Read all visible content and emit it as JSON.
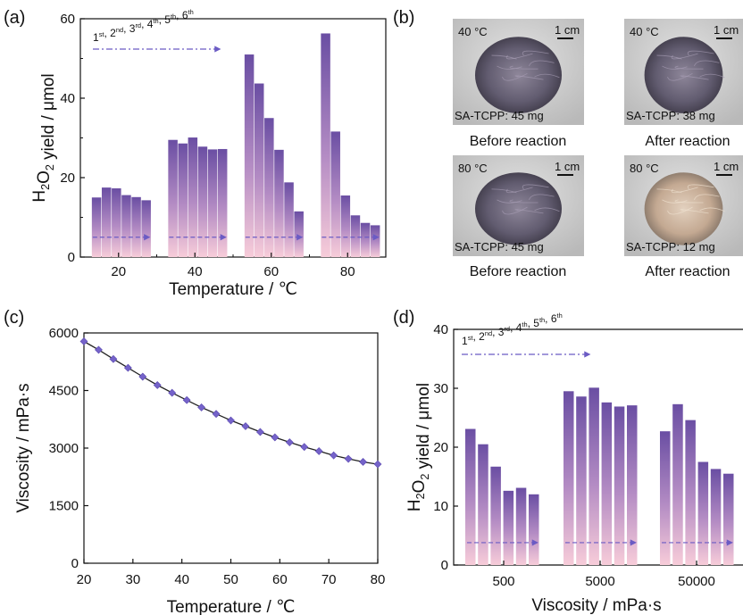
{
  "panels": {
    "a": {
      "label": "(a)"
    },
    "b": {
      "label": "(b)"
    },
    "c": {
      "label": "(c)"
    },
    "d": {
      "label": "(d)"
    }
  },
  "colors": {
    "bar_top": "#6a4ea3",
    "bar_bottom": "#f5c8d8",
    "arrow": "#6b5bc4",
    "marker": "#7563c9",
    "curve": "#222222"
  },
  "chart_data": [
    {
      "id": "a",
      "type": "bar",
      "xlabel": "Temperature / ℃",
      "ylabel_parts": [
        "H",
        "2",
        "O",
        "2",
        " yield / μmol"
      ],
      "xlim": [
        10,
        90
      ],
      "ylim": [
        0,
        60
      ],
      "xticks": [
        "20",
        "40",
        "60",
        "80"
      ],
      "yticks": [
        "0",
        "20",
        "40",
        "60"
      ],
      "grid": false,
      "legend": {
        "text_parts": [
          [
            "1",
            "st"
          ],
          [
            "2",
            "nd"
          ],
          [
            "3",
            "rd"
          ],
          [
            "4",
            "th"
          ],
          [
            "5",
            "th"
          ],
          [
            "6",
            "th"
          ]
        ],
        "style": "dash-dot arrow"
      },
      "groups": [
        {
          "x": [
            14,
            16.6,
            19.2,
            21.8,
            24.4,
            27
          ],
          "values": [
            15.0,
            17.5,
            17.3,
            15.6,
            15.1,
            14.3
          ]
        },
        {
          "x": [
            34,
            36.6,
            39.2,
            41.8,
            44.4,
            47
          ],
          "values": [
            29.5,
            28.6,
            30.1,
            27.8,
            27.1,
            27.2
          ]
        },
        {
          "x": [
            54,
            56.6,
            59.2,
            61.8,
            64.4,
            67
          ],
          "values": [
            51.0,
            43.7,
            35.0,
            27.0,
            18.8,
            11.5
          ]
        },
        {
          "x": [
            74,
            76.6,
            79.2,
            81.8,
            84.4,
            87
          ],
          "values": [
            56.3,
            31.6,
            15.5,
            10.5,
            8.6,
            8.0
          ]
        }
      ],
      "arrow_level": 5
    },
    {
      "id": "c",
      "type": "line",
      "xlabel": "Temperature / ℃",
      "ylabel": "Viscosity / mPa·s",
      "xlim": [
        20,
        80
      ],
      "ylim": [
        0,
        6000
      ],
      "xticks": [
        "20",
        "30",
        "40",
        "50",
        "60",
        "70",
        "80"
      ],
      "yticks": [
        "0",
        "1500",
        "3000",
        "4500",
        "6000"
      ],
      "grid": false,
      "x": [
        20,
        23,
        26,
        29,
        32,
        35,
        38,
        41,
        44,
        47,
        50,
        53,
        56,
        59,
        62,
        65,
        68,
        71,
        74,
        77,
        80
      ],
      "y": [
        5780,
        5560,
        5320,
        5090,
        4860,
        4640,
        4440,
        4250,
        4060,
        3890,
        3720,
        3570,
        3420,
        3280,
        3150,
        3030,
        2920,
        2810,
        2720,
        2640,
        2580
      ]
    },
    {
      "id": "d",
      "type": "bar",
      "xlabel": "Viscosity / mPa·s",
      "ylabel_parts": [
        "H",
        "2",
        "O",
        "2",
        " yield / μmol"
      ],
      "ylim": [
        0,
        40
      ],
      "xticks": [
        "500",
        "5000",
        "50000"
      ],
      "yticks": [
        "0",
        "10",
        "20",
        "30",
        "40"
      ],
      "grid": false,
      "legend": {
        "text_parts": [
          [
            "1",
            "st"
          ],
          [
            "2",
            "nd"
          ],
          [
            "3",
            "rd"
          ],
          [
            "4",
            "th"
          ],
          [
            "5",
            "th"
          ],
          [
            "6",
            "th"
          ]
        ],
        "style": "dash-dot arrow"
      },
      "groups": [
        {
          "category": "500",
          "values": [
            23.1,
            20.5,
            16.7,
            12.6,
            13.1,
            12.0
          ]
        },
        {
          "category": "5000",
          "values": [
            29.5,
            28.6,
            30.1,
            27.6,
            26.9,
            27.1
          ]
        },
        {
          "category": "50000",
          "values": [
            22.7,
            27.3,
            24.6,
            17.5,
            16.3,
            15.5
          ]
        }
      ],
      "arrow_level": 3.8
    }
  ],
  "photos": [
    {
      "temp": "40 °C",
      "scale": "1 cm",
      "caption": "SA-TCPP: 45 mg",
      "label": "Before reaction",
      "tone": "#5d5670"
    },
    {
      "temp": "40 °C",
      "scale": "1 cm",
      "caption": "SA-TCPP: 38 mg",
      "label": "After reaction",
      "tone": "#7a6c80"
    },
    {
      "temp": "80 °C",
      "scale": "1 cm",
      "caption": "SA-TCPP: 45 mg",
      "label": "Before reaction",
      "tone": "#5a5568"
    },
    {
      "temp": "80 °C",
      "scale": "1 cm",
      "caption": "SA-TCPP: 12 mg",
      "label": "After reaction",
      "tone": "#c7b09a"
    }
  ]
}
